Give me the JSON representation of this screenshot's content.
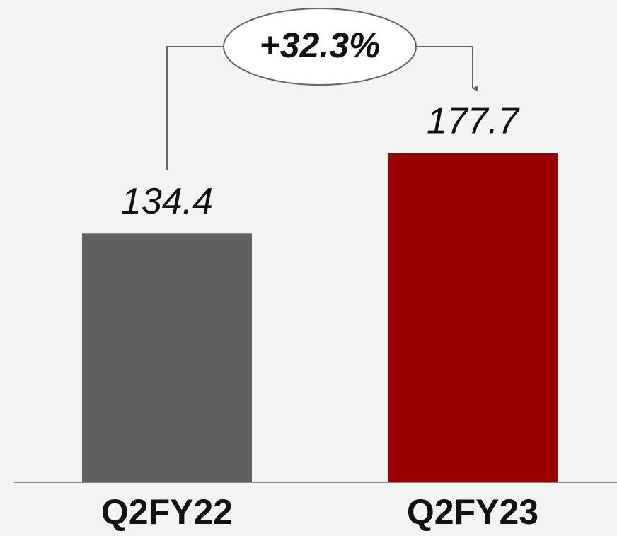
{
  "chart_data": {
    "type": "bar",
    "categories": [
      "Q2FY22",
      "Q2FY23"
    ],
    "values": [
      134.4,
      177.7
    ],
    "colors": [
      "#606060",
      "#990000"
    ],
    "annotation": "+32.3%"
  }
}
